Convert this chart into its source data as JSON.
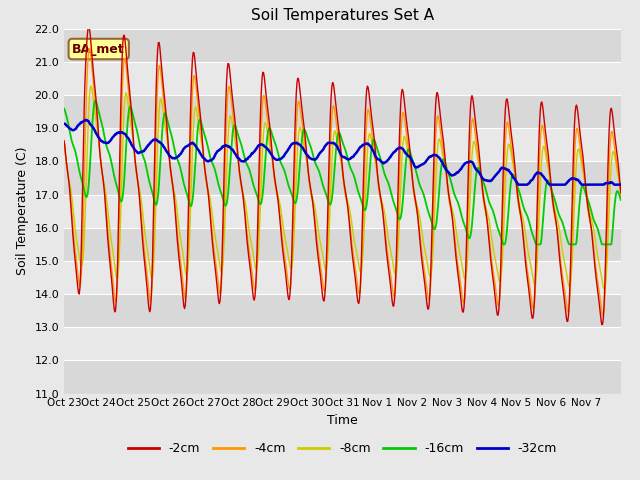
{
  "title": "Soil Temperatures Set A",
  "xlabel": "Time",
  "ylabel": "Soil Temperature (C)",
  "ylim": [
    11.0,
    22.0
  ],
  "yticks": [
    11.0,
    12.0,
    13.0,
    14.0,
    15.0,
    16.0,
    17.0,
    18.0,
    19.0,
    20.0,
    21.0,
    22.0
  ],
  "xtick_labels": [
    "Oct 23",
    "Oct 24",
    "Oct 25",
    "Oct 26",
    "Oct 27",
    "Oct 28",
    "Oct 29",
    "Oct 30",
    "Oct 31",
    "Nov 1",
    "Nov 2",
    "Nov 3",
    "Nov 4",
    "Nov 5",
    "Nov 6",
    "Nov 7"
  ],
  "line_colors": {
    "-2cm": "#cc0000",
    "-4cm": "#ff9900",
    "-8cm": "#cccc00",
    "-16cm": "#00cc00",
    "-32cm": "#0000cc"
  },
  "annotation_text": "BA_met",
  "annotation_bg": "#ffff99",
  "annotation_border": "#996633",
  "band_colors": [
    "#e8e8e8",
    "#d8d8d8"
  ],
  "grid_color": "#ffffff",
  "fig_bg": "#e8e8e8"
}
